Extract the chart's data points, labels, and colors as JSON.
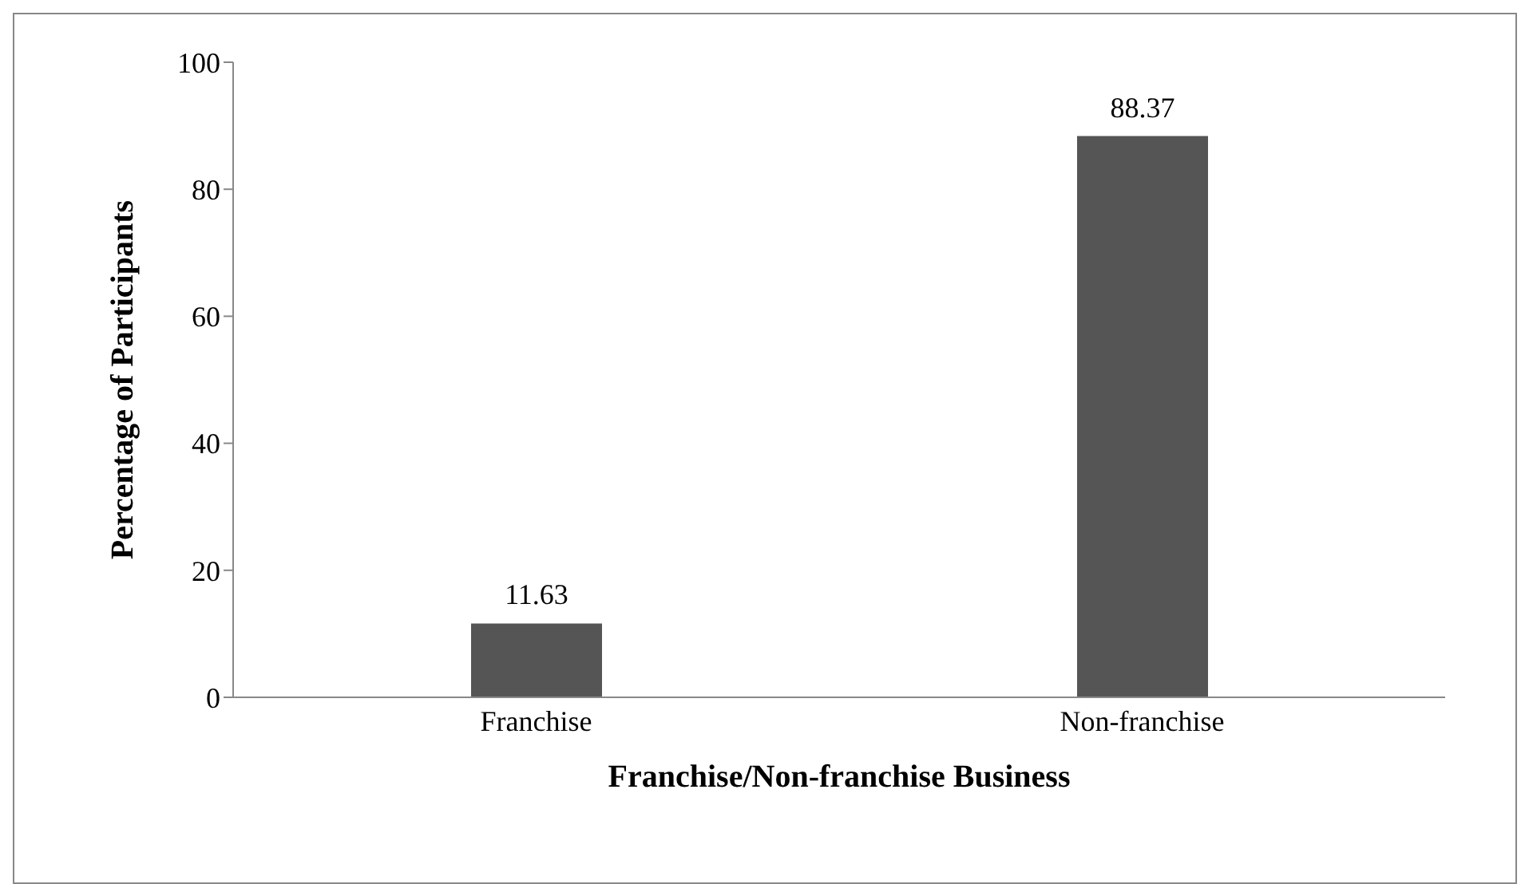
{
  "chart_data": {
    "type": "bar",
    "xlabel": "Franchise/Non-franchise Business",
    "ylabel": "Percentage of Participants",
    "categories": [
      "Franchise",
      "Non-franchise"
    ],
    "values": [
      11.63,
      88.37
    ],
    "color": "#555555",
    "ylim": [
      0,
      100
    ],
    "yticks": [
      0,
      20,
      40,
      60,
      80,
      100
    ],
    "data_labels": true,
    "grid": false,
    "legend": false
  }
}
